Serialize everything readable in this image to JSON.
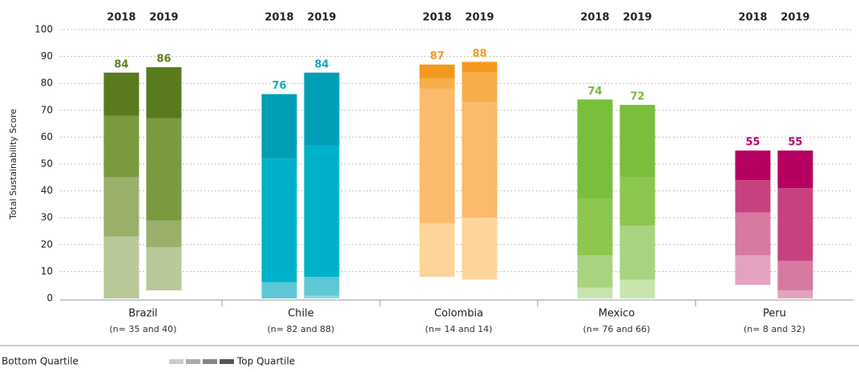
{
  "chart_data": {
    "type": "bar",
    "ylabel": "Total Sustainability Score",
    "ylim": [
      0,
      100
    ],
    "yticks": [
      0,
      10,
      20,
      30,
      40,
      50,
      60,
      70,
      80,
      90,
      100
    ],
    "grid": true,
    "years": [
      "2018",
      "2019"
    ],
    "groups": [
      {
        "name": "Brazil",
        "note": "(n= 35 and 40)",
        "label_color": "#5f7f22",
        "colors": [
          "#b8c898",
          "#9ab06a",
          "#7a9a40",
          "#5a7a1e"
        ],
        "bars": [
          [
            0,
            23,
            45,
            68,
            84
          ],
          [
            3,
            19,
            29,
            67,
            86
          ]
        ]
      },
      {
        "name": "Chile",
        "note": "(n= 82 and 88)",
        "label_color": "#13a8bd",
        "colors": [
          "#8fd8e2",
          "#5ec8d6",
          "#00b2c9",
          "#009fb7"
        ],
        "bars": [
          [
            0,
            0,
            6,
            52,
            76
          ],
          [
            0,
            1,
            8,
            57,
            84
          ]
        ]
      },
      {
        "name": "Colombia",
        "note": "(n= 14 and 14)",
        "label_color": "#f39a1e",
        "colors": [
          "#fdd49a",
          "#fbbb6a",
          "#f7ad4a",
          "#f39a1e"
        ],
        "bars": [
          [
            8,
            28,
            78,
            82,
            87
          ],
          [
            7,
            30,
            73,
            84,
            88
          ]
        ]
      },
      {
        "name": "Mexico",
        "note": "(n= 76 and 66)",
        "label_color": "#7ab83a",
        "colors": [
          "#c8e4ac",
          "#a8d480",
          "#8cc74f",
          "#7abf3c"
        ],
        "bars": [
          [
            0,
            4,
            16,
            37,
            74
          ],
          [
            0,
            7,
            27,
            45,
            72
          ]
        ]
      },
      {
        "name": "Peru",
        "note": "(n= 8 and 32)",
        "label_color": "#b5006a",
        "colors": [
          "#e3a3c0",
          "#d67aa2",
          "#c8417f",
          "#b5005f"
        ],
        "bars": [
          [
            5,
            16,
            32,
            44,
            55
          ],
          [
            0,
            3,
            14,
            41,
            55
          ]
        ]
      }
    ],
    "legend": {
      "low": "Bottom Quartile",
      "high": "Top Quartile",
      "colors": [
        "#cfcac8",
        "#b0aaa8",
        "#8a8482",
        "#5a5452"
      ]
    }
  }
}
